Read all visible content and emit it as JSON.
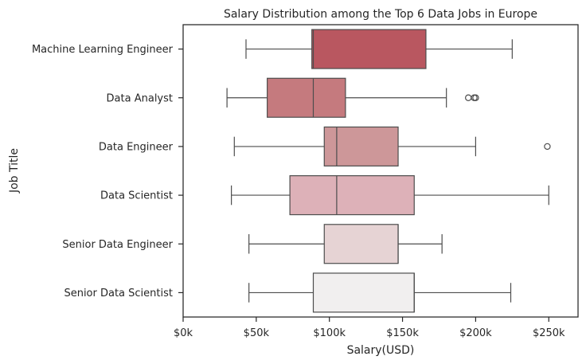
{
  "chart_data": {
    "type": "box",
    "title": "Salary Distribution among the Top 6 Data Jobs in Europe",
    "xlabel": "Salary(USD)",
    "ylabel": "Job Title",
    "xlim": [
      0,
      270000
    ],
    "xticks": [
      {
        "value": 0,
        "label": "$0k"
      },
      {
        "value": 50000,
        "label": "$50k"
      },
      {
        "value": 100000,
        "label": "$100k"
      },
      {
        "value": 150000,
        "label": "$150k"
      },
      {
        "value": 200000,
        "label": "$200k"
      },
      {
        "value": 250000,
        "label": "$250k"
      }
    ],
    "grid": false,
    "categories": [
      "Machine Learning Engineer",
      "Data Analyst",
      "Data Engineer",
      "Data Scientist",
      "Senior Data Engineer",
      "Senior Data Scientist"
    ],
    "boxes": [
      {
        "min": 43000,
        "q1": 88000,
        "median": 89000,
        "q3": 166000,
        "max": 225000,
        "outliers": [],
        "color": "#b95760"
      },
      {
        "min": 30000,
        "q1": 57500,
        "median": 89000,
        "q3": 111000,
        "max": 180000,
        "outliers": [
          195000,
          199000,
          200000
        ],
        "color": "#c57a7e"
      },
      {
        "min": 35000,
        "q1": 96500,
        "median": 105000,
        "q3": 147000,
        "max": 200000,
        "outliers": [
          249000
        ],
        "color": "#cd9799"
      },
      {
        "min": 33000,
        "q1": 73000,
        "median": 105000,
        "q3": 158000,
        "max": 250000,
        "outliers": [],
        "color": "#ddb1b8"
      },
      {
        "min": 45000,
        "q1": 96500,
        "median": 147000,
        "q3": 147000,
        "max": 177000,
        "outliers": [],
        "color": "#e6d3d4"
      },
      {
        "min": 45000,
        "q1": 89000,
        "median": 158000,
        "q3": 158000,
        "max": 224000,
        "outliers": [],
        "color": "#f1efef"
      }
    ]
  }
}
